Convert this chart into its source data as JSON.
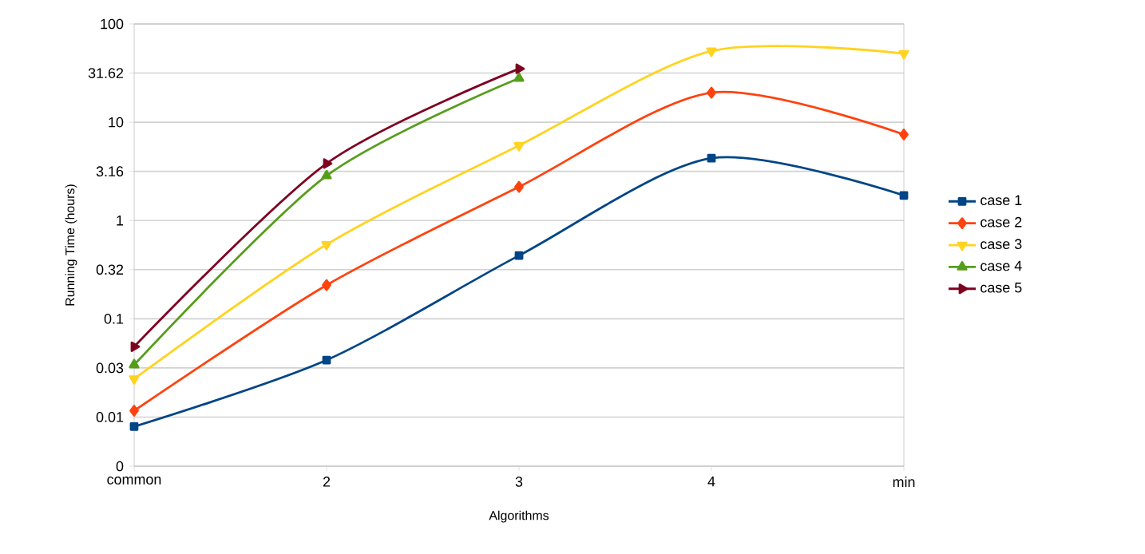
{
  "chart_data": {
    "type": "line",
    "xlabel": "Algorithms",
    "ylabel": "Running Time (hours)",
    "categories": [
      "common",
      "2",
      "3",
      "4",
      "min"
    ],
    "log": "y",
    "grid": "y",
    "legend": "right",
    "ylim": [
      0.003162,
      100
    ],
    "yticks": [
      {
        "value": 0.003162,
        "label": "0"
      },
      0.01,
      {
        "value": 0.03162,
        "label": "0.03"
      },
      0.1,
      {
        "value": 0.3162,
        "label": "0.32"
      },
      1,
      {
        "value": 3.162,
        "label": "3.16"
      },
      10,
      {
        "value": 31.62,
        "label": "31.62"
      },
      100
    ],
    "series": [
      {
        "name": "case 1",
        "color": "#004586",
        "marker": "square",
        "values": [
          0.008,
          0.038,
          0.44,
          4.3,
          1.8
        ]
      },
      {
        "name": "case 2",
        "color": "#ff420e",
        "marker": "diamond",
        "values": [
          0.0116,
          0.22,
          2.2,
          20,
          7.5
        ]
      },
      {
        "name": "case 3",
        "color": "#ffd320",
        "marker": "triangle-down",
        "values": [
          0.0245,
          0.57,
          5.8,
          53,
          50
        ]
      },
      {
        "name": "case 4",
        "color": "#579d1c",
        "marker": "triangle",
        "values": [
          0.034,
          2.85,
          28,
          null,
          null
        ]
      },
      {
        "name": "case 5",
        "color": "#7e0021",
        "marker": "triangle-right",
        "values": [
          0.052,
          3.8,
          35,
          null,
          null
        ]
      }
    ]
  }
}
